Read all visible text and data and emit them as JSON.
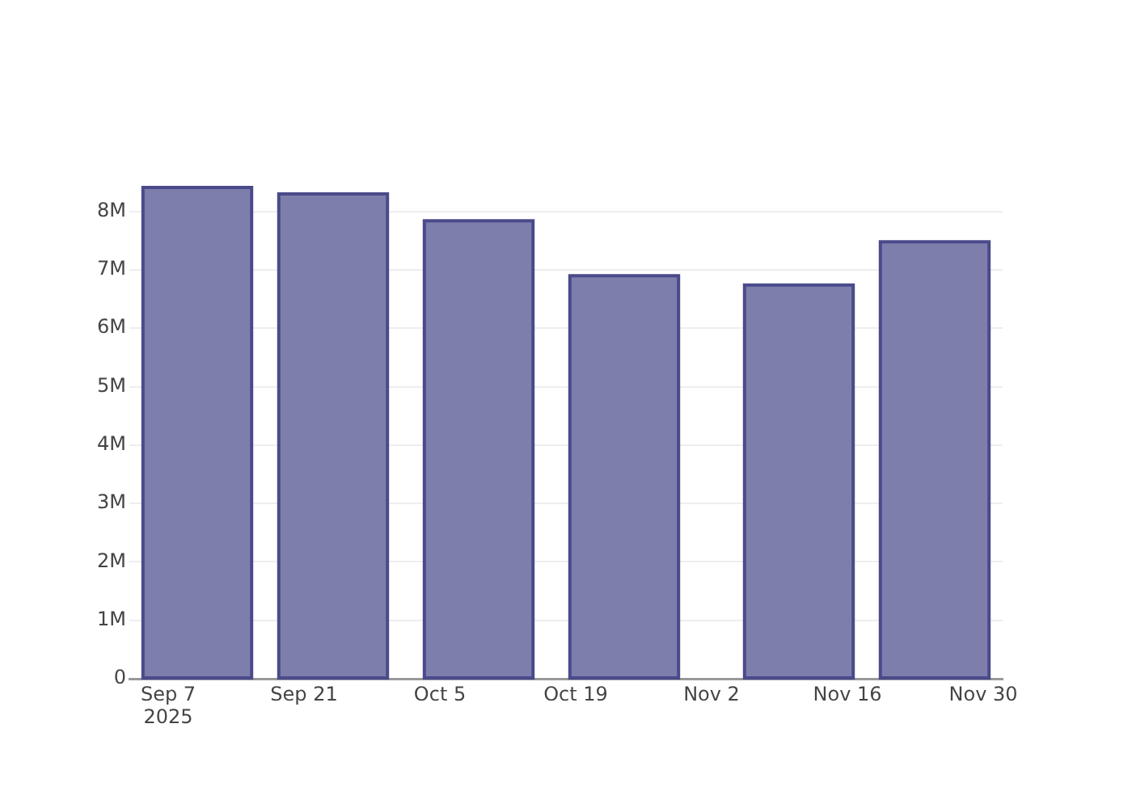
{
  "chart_data": {
    "type": "bar",
    "x": [
      "2025-09-10",
      "2025-09-24",
      "2025-10-09",
      "2025-10-24",
      "2025-11-11",
      "2025-11-25"
    ],
    "values": [
      8410000,
      8300000,
      7840000,
      6900000,
      6740000,
      7480000
    ],
    "color": "#7e7eac",
    "xlim": [
      "2025-09-03",
      "2025-12-02"
    ],
    "xticks": [
      {
        "value": "2025-09-07",
        "label": "Sep 7\n2025"
      },
      {
        "value": "2025-09-21",
        "label": "Sep 21"
      },
      {
        "value": "2025-10-05",
        "label": "Oct 5"
      },
      {
        "value": "2025-10-19",
        "label": "Oct 19"
      },
      {
        "value": "2025-11-02",
        "label": "Nov 2"
      },
      {
        "value": "2025-11-16",
        "label": "Nov 16"
      },
      {
        "value": "2025-11-30",
        "label": "Nov 30"
      }
    ],
    "ylim": [
      0,
      8410000
    ],
    "yticks": [
      0,
      {
        "value": 1000000,
        "label": "1M"
      },
      {
        "value": 2000000,
        "label": "2M"
      },
      {
        "value": 3000000,
        "label": "3M"
      },
      {
        "value": 4000000,
        "label": "4M"
      },
      {
        "value": 5000000,
        "label": "5M"
      },
      {
        "value": 6000000,
        "label": "6M"
      },
      {
        "value": 7000000,
        "label": "7M"
      },
      {
        "value": 8000000,
        "label": "8M"
      }
    ],
    "grid": "y"
  }
}
